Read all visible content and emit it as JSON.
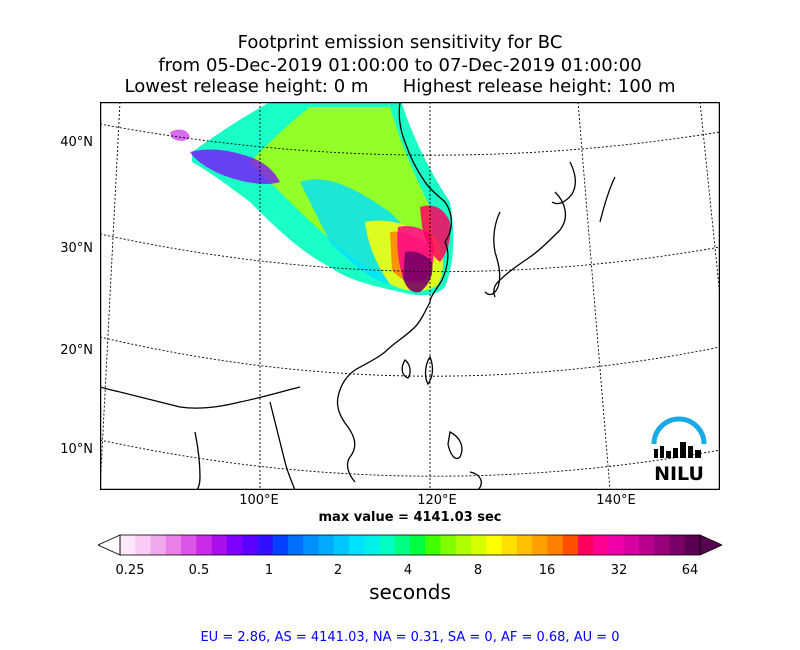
{
  "title": {
    "line1": "Footprint emission sensitivity for BC",
    "line2": "from 05-Dec-2019 01:00:00 to 07-Dec-2019 01:00:00",
    "line3": "Lowest release height: 0 m      Highest release height: 100 m"
  },
  "map": {
    "lat_labels": [
      "40°N",
      "30°N",
      "20°N",
      "10°N"
    ],
    "lon_labels": [
      "100°E",
      "120°E",
      "140°E"
    ],
    "max_value_text": "max value = 4141.03 sec",
    "logo_text": "NILU"
  },
  "colorbar": {
    "tick_labels": [
      "0.25",
      "0.5",
      "1",
      "2",
      "4",
      "8",
      "16",
      "32",
      "64"
    ],
    "unit": "seconds",
    "colors": [
      "#fde8fb",
      "#f8ccf4",
      "#f0a8ee",
      "#e880e8",
      "#dc55e6",
      "#c82ce8",
      "#aa10ec",
      "#8000ff",
      "#5c00ff",
      "#3010ff",
      "#0040ff",
      "#0070ff",
      "#0090ff",
      "#00aaff",
      "#00c8ff",
      "#00e0ff",
      "#00f0e8",
      "#00ffc0",
      "#00ff80",
      "#00ff40",
      "#40ff00",
      "#80ff00",
      "#b0ff00",
      "#d8ff00",
      "#ffff00",
      "#ffe000",
      "#ffc000",
      "#ffa000",
      "#ff8000",
      "#ff5000",
      "#ff0060",
      "#ff0090",
      "#f000a8",
      "#d800a0",
      "#b80090",
      "#98007c",
      "#780068",
      "#5a0050"
    ]
  },
  "stats_text": "EU = 2.86,  AS = 4141.03,  NA = 0.31,  SA = 0,  AF = 0.68,  AU = 0"
}
